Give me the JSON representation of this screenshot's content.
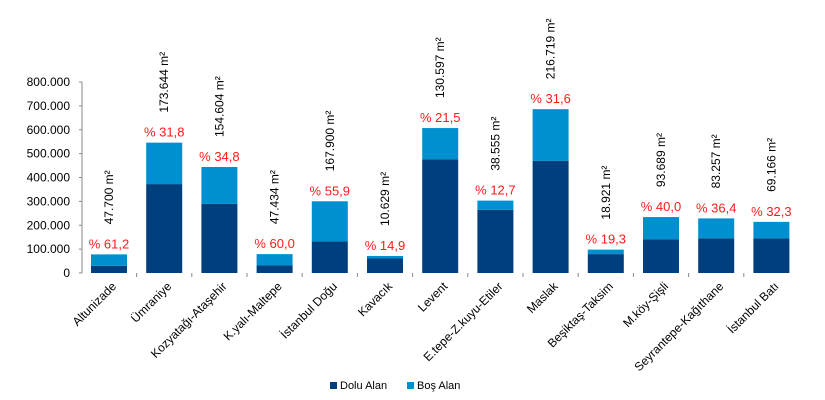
{
  "chart_data": {
    "type": "bar",
    "stacked": true,
    "title": "",
    "xlabel": "",
    "ylabel": "",
    "ylim": [
      0,
      800000
    ],
    "yticks": [
      "0",
      "100.000",
      "200.000",
      "300.000",
      "400.000",
      "500.000",
      "600.000",
      "700.000",
      "800.000"
    ],
    "grid": false,
    "legend_position": "bottom",
    "categories": [
      "Altunizade",
      "Ümraniye",
      "Kozyatağı-Ataşehir",
      "K.yalı-Maltepe",
      "İstanbul Doğu",
      "Kavacık",
      "Levent",
      "E.tepe-Z.kuyu-Etiler",
      "Maslak",
      "Beşiktaş-Taksim",
      "M.köy-Şişli",
      "Seyrantepe-Kağıthane",
      "İstanbul Batı"
    ],
    "series": [
      {
        "name": "Dolu Alan",
        "color": "#003f7d",
        "values": [
          30300,
          372400,
          289400,
          31600,
          132500,
          60700,
          476500,
          264600,
          469400,
          79100,
          140600,
          145500,
          145000
        ]
      },
      {
        "name": "Boş Alan",
        "color": "#0090d0",
        "values": [
          47700,
          173644,
          154604,
          47434,
          167900,
          10629,
          130597,
          38555,
          216719,
          18921,
          93689,
          83257,
          69166
        ]
      }
    ],
    "value_labels": [
      "47.700 m²",
      "173.644 m²",
      "154.604 m²",
      "47.434 m²",
      "167.900 m²",
      "10.629 m²",
      "130.597 m²",
      "38.555 m²",
      "216.719 m²",
      "18.921 m²",
      "93.689 m²",
      "83.257 m²",
      "69.166 m²"
    ],
    "percent_labels": [
      "% 61,2",
      "% 31,8",
      "% 34,8",
      "% 60,0",
      "% 55,9",
      "% 14,9",
      "% 21,5",
      "% 12,7",
      "% 31,6",
      "% 19,3",
      "% 40,0",
      "% 36,4",
      "% 32,3"
    ]
  }
}
